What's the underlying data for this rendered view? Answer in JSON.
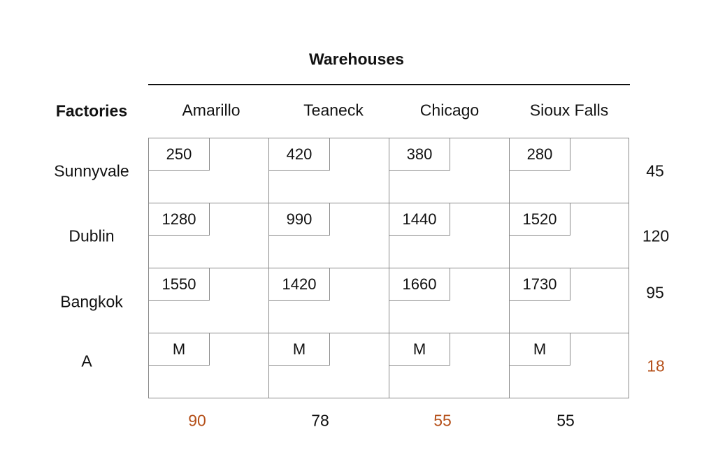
{
  "title": "Warehouses",
  "row_header": "Factories",
  "warehouses": [
    "Amarillo",
    "Teaneck",
    "Chicago",
    "Sioux Falls"
  ],
  "factories": [
    "Sunnyvale",
    "Dublin",
    "Bangkok",
    "A"
  ],
  "costs": [
    [
      "250",
      "420",
      "380",
      "280"
    ],
    [
      "1280",
      "990",
      "1440",
      "1520"
    ],
    [
      "1550",
      "1420",
      "1660",
      "1730"
    ],
    [
      "M",
      "M",
      "M",
      "M"
    ]
  ],
  "supply": [
    "45",
    "120",
    "95",
    "18"
  ],
  "demand": [
    "90",
    "78",
    "55",
    "55"
  ],
  "colors": {
    "text": "#111111",
    "grid_line": "#8a8a8a",
    "highlight": "#b5501a"
  },
  "highlighted": {
    "supply": [
      false,
      false,
      false,
      true
    ],
    "demand": [
      true,
      false,
      true,
      false
    ]
  }
}
